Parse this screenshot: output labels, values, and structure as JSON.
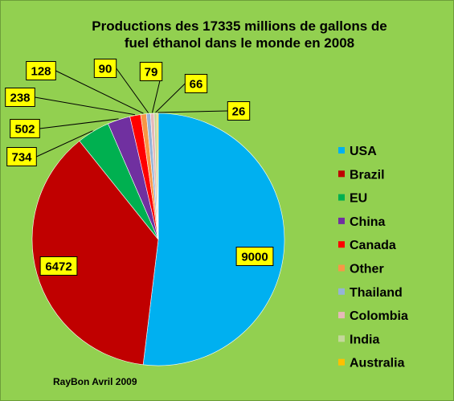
{
  "chart_data": {
    "type": "pie",
    "title_lines": [
      "Productions des 17335 millions de gallons de",
      "fuel éthanol dans le monde en 2008"
    ],
    "categories": [
      "USA",
      "Brazil",
      "EU",
      "China",
      "Canada",
      "Other",
      "Thailand",
      "Colombia",
      "India",
      "Australia"
    ],
    "values": [
      9000,
      6472,
      734,
      502,
      238,
      128,
      90,
      79,
      66,
      26
    ],
    "labels": [
      "9000",
      "6472",
      "734",
      "502",
      "238",
      "128",
      "90",
      "79",
      "66",
      "26"
    ],
    "colors": [
      "#00B0F0",
      "#C00000",
      "#00B050",
      "#7030A0",
      "#FF0000",
      "#F79646",
      "#95B3D7",
      "#E6B9B8",
      "#C4D79B",
      "#FFC000"
    ],
    "legend_position": "right",
    "background_color": "#92D050",
    "label_box_color": "#FFFF00"
  },
  "credit": "RayBon Avril 2009"
}
